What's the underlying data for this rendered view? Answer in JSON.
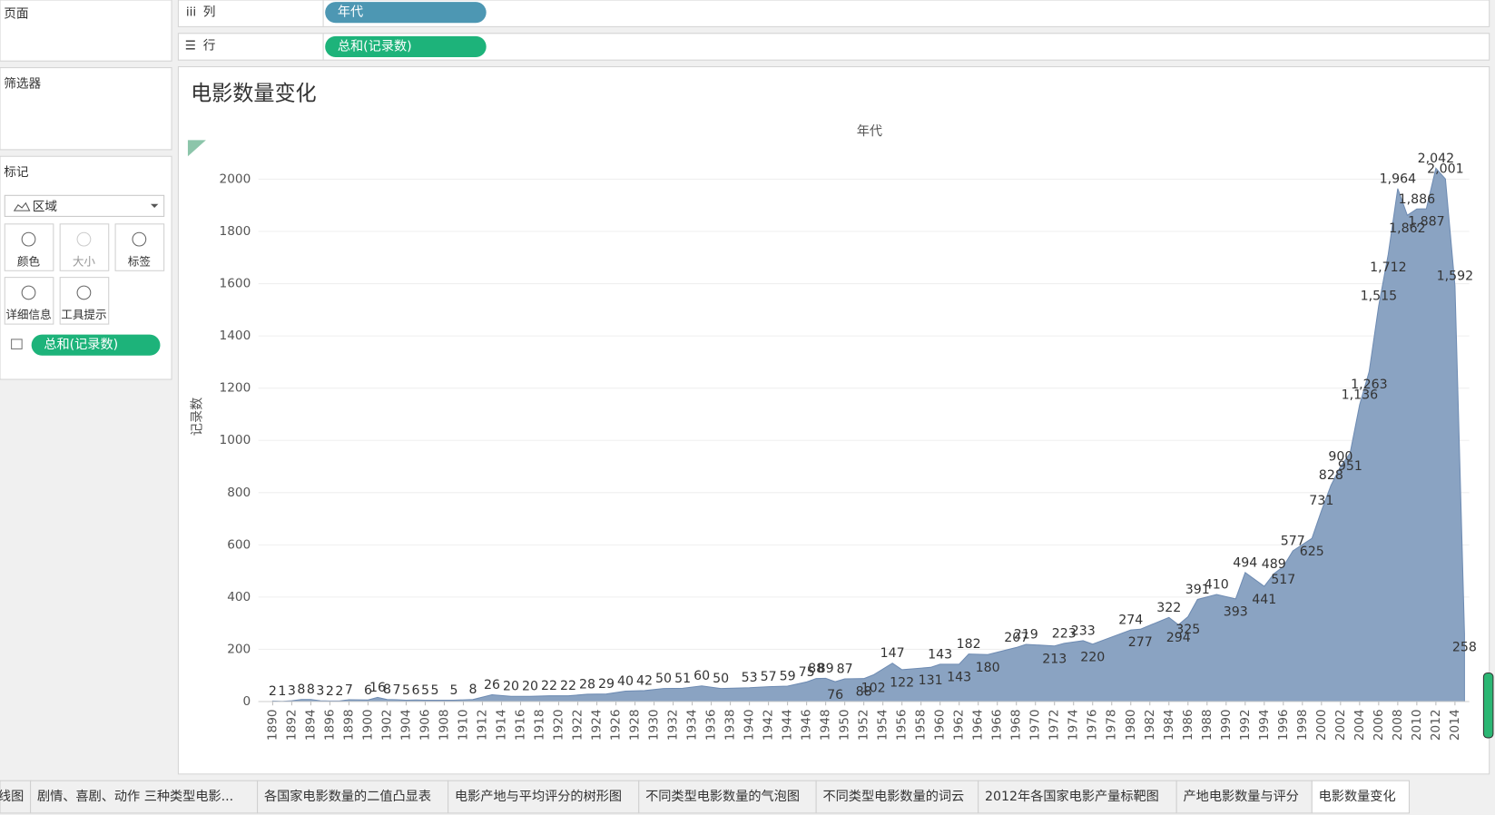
{
  "sidebar": {
    "pages": "页面",
    "filters": "筛选器",
    "marks": "标记",
    "mark_type": "区域",
    "buttons": [
      "颜色",
      "大小",
      "标签",
      "详细信息",
      "工具提示"
    ],
    "mark_pill": "总和(记录数)"
  },
  "shelves": {
    "columns": {
      "label": "列",
      "pill": "年代"
    },
    "rows": {
      "label": "行",
      "pill": "总和(记录数)"
    }
  },
  "chart_data": {
    "type": "area",
    "title": "电影数量变化",
    "x_header": "年代",
    "y_label": "记录数",
    "color": "#8aa3c2",
    "line_color": "#6f8cb3",
    "grid": true,
    "x": [
      1890,
      1891,
      1892,
      1893,
      1894,
      1895,
      1896,
      1897,
      1898,
      1900,
      1901,
      1902,
      1903,
      1904,
      1905,
      1906,
      1907,
      1909,
      1911,
      1913,
      1915,
      1917,
      1919,
      1921,
      1923,
      1925,
      1927,
      1929,
      1931,
      1933,
      1935,
      1937,
      1940,
      1942,
      1944,
      1946,
      1947,
      1948,
      1949,
      1950,
      1952,
      1953,
      1955,
      1956,
      1959,
      1960,
      1962,
      1963,
      1965,
      1968,
      1969,
      1972,
      1973,
      1975,
      1976,
      1980,
      1981,
      1984,
      1985,
      1986,
      1987,
      1989,
      1991,
      1992,
      1994,
      1995,
      1996,
      1997,
      1999,
      2000,
      2001,
      2002,
      2003,
      2004,
      2005,
      2006,
      2007,
      2008,
      2009,
      2010,
      2011,
      2012,
      2013,
      2014,
      2015
    ],
    "values": [
      2,
      1,
      3,
      8,
      8,
      3,
      2,
      2,
      7,
      6,
      16,
      8,
      7,
      5,
      6,
      5,
      5,
      5,
      8,
      26,
      20,
      20,
      22,
      22,
      28,
      29,
      40,
      42,
      50,
      51,
      60,
      50,
      53,
      57,
      59,
      75,
      88,
      89,
      76,
      87,
      88,
      102,
      147,
      122,
      131,
      143,
      143,
      182,
      180,
      207,
      219,
      213,
      223,
      233,
      220,
      274,
      277,
      322,
      294,
      325,
      391,
      410,
      393,
      494,
      441,
      489,
      517,
      577,
      625,
      731,
      828,
      900,
      951,
      1136,
      1263,
      1515,
      1712,
      1964,
      1862,
      1886,
      1887,
      2042,
      2001,
      1592,
      258
    ],
    "value_labels": [
      "2",
      "1",
      "3",
      "8",
      "8",
      "3",
      "2",
      "2",
      "7",
      "6",
      "16",
      "8",
      "7",
      "5",
      "6",
      "5",
      "5",
      "5",
      "8",
      "26",
      "20",
      "20",
      "22",
      "22",
      "28",
      "29",
      "40",
      "42",
      "50",
      "51",
      "60",
      "50",
      "53",
      "57",
      "59",
      "75",
      "88",
      "89",
      "76",
      "87",
      "88",
      "102",
      "147",
      "122",
      "131",
      "143",
      "143",
      "182",
      "180",
      "207",
      "219",
      "213",
      "223",
      "233",
      "220",
      "274",
      "277",
      "322",
      "294",
      "325",
      "391",
      "410",
      "393",
      "494",
      "441",
      "489",
      "517",
      "577",
      "625",
      "731",
      "828",
      "900",
      "951",
      "1,136",
      "1,263",
      "1,515",
      "1,712",
      "1,964",
      "1,862",
      "1,886",
      "1,887",
      "2,042",
      "2,001",
      "1,592",
      "258"
    ],
    "xlim": [
      1888.5,
      2015.5
    ],
    "xticks": [
      1890,
      1892,
      1894,
      1896,
      1898,
      1900,
      1902,
      1904,
      1906,
      1908,
      1910,
      1912,
      1914,
      1916,
      1918,
      1920,
      1922,
      1924,
      1926,
      1928,
      1930,
      1932,
      1934,
      1936,
      1938,
      1940,
      1942,
      1944,
      1946,
      1948,
      1950,
      1952,
      1954,
      1956,
      1958,
      1960,
      1962,
      1964,
      1966,
      1968,
      1970,
      1972,
      1974,
      1976,
      1978,
      1980,
      1982,
      1984,
      1986,
      1988,
      1990,
      1992,
      1994,
      1996,
      1998,
      2000,
      2002,
      2004,
      2006,
      2008,
      2010,
      2012,
      2014
    ],
    "ylim": [
      0,
      2150
    ],
    "yticks": [
      0,
      200,
      400,
      600,
      800,
      1000,
      1200,
      1400,
      1600,
      1800,
      2000
    ]
  },
  "tabs": [
    "线图",
    "剧情、喜剧、动作 三种类型电影...",
    "各国家电影数量的二值凸显表",
    "电影产地与平均评分的树形图",
    "不同类型电影数量的气泡图",
    "不同类型电影数量的词云",
    "2012年各国家电影产量标靶图",
    "产地电影数量与评分",
    "电影数量变化"
  ]
}
